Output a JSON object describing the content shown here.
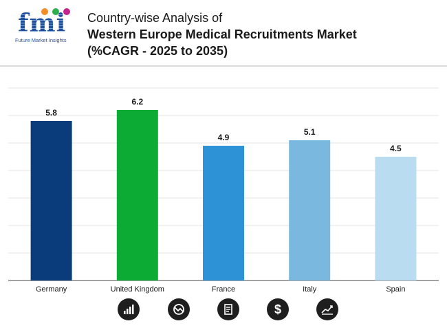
{
  "header": {
    "logo_text": "fmi",
    "logo_subtitle": "Future Market Insights",
    "title_line1": "Country-wise Analysis of",
    "title_line2": "Western Europe Medical Recruitments Market",
    "title_line3": "(%CAGR - 2025 to 2035)"
  },
  "chart_data": {
    "type": "bar",
    "title": "Country-wise Analysis of Western Europe Medical Recruitments Market (%CAGR - 2025 to 2035)",
    "categories": [
      "Germany",
      "United Kingdom",
      "France",
      "Italy",
      "Spain"
    ],
    "values": [
      5.8,
      6.2,
      4.9,
      5.1,
      4.5
    ],
    "value_labels": [
      "5.8",
      "6.2",
      "4.9",
      "5.1",
      "4.5"
    ],
    "colors": [
      "#0a3b7a",
      "#0bab34",
      "#2e93d6",
      "#7bb8e0",
      "#b9dcf1"
    ],
    "ylim": [
      0,
      7
    ],
    "grid": true,
    "xlabel": "",
    "ylabel": ""
  },
  "footer_icons": [
    "bar-chart-icon",
    "trend-down-icon",
    "document-icon",
    "dollar-icon",
    "line-chart-icon"
  ]
}
